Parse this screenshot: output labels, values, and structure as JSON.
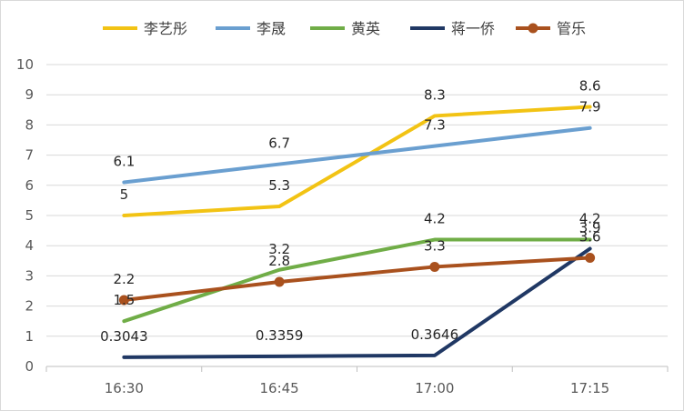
{
  "chart_data": {
    "type": "line",
    "categories": [
      "16:30",
      "16:45",
      "17:00",
      "17:15"
    ],
    "ylim": [
      0,
      10
    ],
    "yticks": [
      0,
      1,
      2,
      3,
      4,
      5,
      6,
      7,
      8,
      9,
      10
    ],
    "grid": true,
    "legend_position": "top",
    "series": [
      {
        "name": "李艺彤",
        "color": "#F2C314",
        "marker": "none",
        "values": [
          5,
          5.3,
          8.3,
          8.6
        ],
        "labels": [
          "5",
          "5.3",
          "8.3",
          "8.6"
        ]
      },
      {
        "name": "李晟",
        "color": "#6A9FD0",
        "marker": "none",
        "values": [
          6.1,
          6.7,
          7.3,
          7.9
        ],
        "labels": [
          "6.1",
          "6.7",
          "7.3",
          "7.9"
        ]
      },
      {
        "name": "黄英",
        "color": "#70AD47",
        "marker": "none",
        "values": [
          1.5,
          3.2,
          4.2,
          4.2
        ],
        "labels": [
          "1.5",
          "3.2",
          "4.2",
          "4.2"
        ]
      },
      {
        "name": "蒋一侨",
        "color": "#203864",
        "marker": "none",
        "values": [
          0.3043,
          0.3359,
          0.3646,
          3.9
        ],
        "labels": [
          "0.3043",
          "0.3359",
          "0.3646",
          "3.9"
        ]
      },
      {
        "name": "管乐",
        "color": "#A9511E",
        "marker": "circle",
        "values": [
          2.2,
          2.8,
          3.3,
          3.6
        ],
        "labels": [
          "2.2",
          "2.8",
          "3.3",
          "3.6"
        ]
      }
    ]
  }
}
